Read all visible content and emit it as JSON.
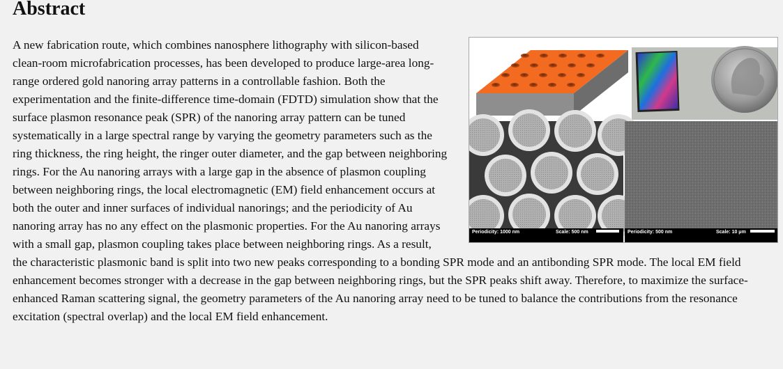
{
  "section": {
    "heading": "Abstract"
  },
  "abstract": {
    "text": "A new fabrication route, which combines nanosphere lithography with silicon-based clean-room microfabrication processes, has been developed to produce large-area long-range ordered gold nanoring array patterns in a controllable fashion. Both the experimentation and the finite-difference time-domain (FDTD) simulation show that the surface plasmon resonance peak (SPR) of the nanoring array pattern can be tuned systematically in a large spectral range by varying the geometry parameters such as the ring thickness, the ring height, the ringer outer diameter, and the gap between neighboring rings. For the Au nanoring arrays with a large gap in the absence of plasmon coupling between neighboring rings, the local electromagnetic (EM) field enhancement occurs at both the outer and inner surfaces of individual nanorings; and the periodicity of Au nanoring array has no any effect on the plasmonic properties. For the Au nanoring arrays with a small gap, plasmon coupling takes place between neighboring rings. As a result, the characteristic plasmonic band is split into two new peaks corresponding to a bonding SPR mode and an antibonding SPR mode. The local EM field enhancement becomes stronger with a decrease in the gap between neighboring rings, but the SPR peaks shift away. Therefore, to maximize the surface-enhanced Raman scattering signal, the geometry parameters of the Au nanoring array need to be tuned to balance the contributions from the resonance excitation (spectral overlap) and the local EM field enhancement."
  },
  "figure": {
    "panel_left_caption_periodicity": "Periodicity: 1000 nm",
    "panel_left_caption_scale": "Scale: 500 nm",
    "panel_right_caption_periodicity": "Periodicity: 500 nm",
    "panel_right_caption_scale": "Scale: 10 μm",
    "colors": {
      "substrate_top": "#f26b21",
      "substrate_side": "#8a8a8a",
      "sem_bg": "#3a3a3a",
      "sem_fine": "#6f6f6f"
    }
  }
}
